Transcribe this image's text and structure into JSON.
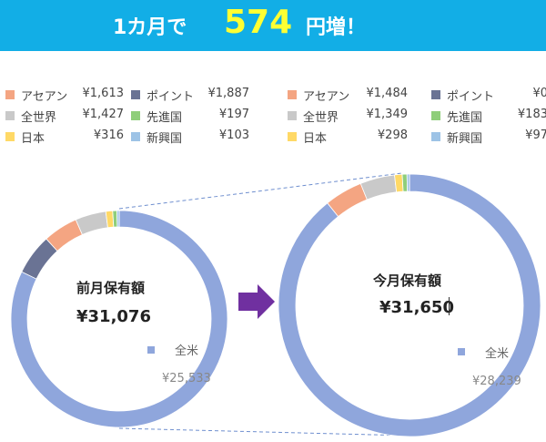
{
  "banner": {
    "prefix": "1カ月で",
    "amount": "574",
    "suffix": "円増！"
  },
  "colors": {
    "banner_bg": "#12aee6",
    "amount": "#ffff33",
    "arrow": "#7030a0",
    "アセアン": "#f4a582",
    "ポイント": "#6a7394",
    "全世界": "#c9c9c9",
    "先進国": "#8fce7a",
    "日本": "#ffd966",
    "新興国": "#9dc3e6",
    "全米": "#8fa6dc"
  },
  "legend_prev": [
    {
      "label": "アセアン",
      "value": "¥1,613",
      "color": "#f4a582"
    },
    {
      "label": "ポイント",
      "value": "¥1,887",
      "color": "#6a7394"
    },
    {
      "label": "全世界",
      "value": "¥1,427",
      "color": "#c9c9c9"
    },
    {
      "label": "先進国",
      "value": "¥197",
      "color": "#8fce7a"
    },
    {
      "label": "日本",
      "value": "¥316",
      "color": "#ffd966"
    },
    {
      "label": "新興国",
      "value": "¥103",
      "color": "#9dc3e6"
    }
  ],
  "legend_curr": [
    {
      "label": "アセアン",
      "value": "¥1,484",
      "color": "#f4a582"
    },
    {
      "label": "ポイント",
      "value": "¥0",
      "color": "#6a7394"
    },
    {
      "label": "全世界",
      "value": "¥1,349",
      "color": "#c9c9c9"
    },
    {
      "label": "先進国",
      "value": "¥183",
      "color": "#8fce7a"
    },
    {
      "label": "日本",
      "value": "¥298",
      "color": "#ffd966"
    },
    {
      "label": "新興国",
      "value": "¥97",
      "color": "#9dc3e6"
    }
  ],
  "chart_data": [
    {
      "type": "pie",
      "title": "前月保有額",
      "total_label": "¥31,076",
      "categories": [
        "全米",
        "ポイント",
        "アセアン",
        "全世界",
        "日本",
        "先進国",
        "新興国"
      ],
      "values": [
        25533,
        1887,
        1613,
        1427,
        316,
        197,
        103
      ],
      "main_label": "全米",
      "main_value": "¥25,533"
    },
    {
      "type": "pie",
      "title": "今月保有額",
      "total_label": "¥31,650",
      "categories": [
        "全米",
        "ポイント",
        "アセアン",
        "全世界",
        "日本",
        "先進国",
        "新興国"
      ],
      "values": [
        28239,
        0,
        1484,
        1349,
        298,
        183,
        97
      ],
      "main_label": "全米",
      "main_value": "¥28,239"
    }
  ]
}
